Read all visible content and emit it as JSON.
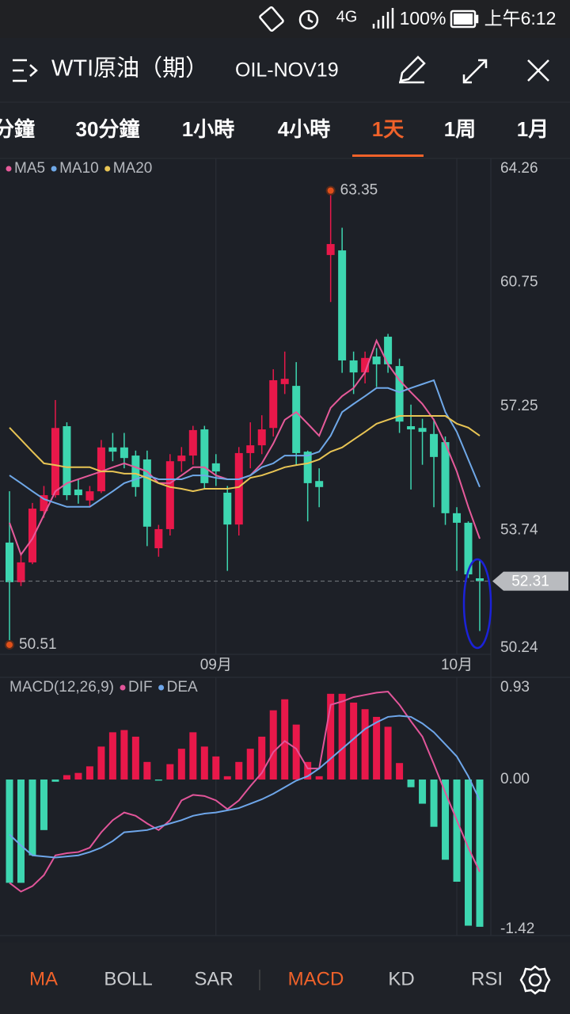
{
  "status_bar": {
    "network": "4G",
    "battery": "100%",
    "time": "上午6:12"
  },
  "header": {
    "title": "WTI原油（期）",
    "symbol": "OIL-NOV19"
  },
  "period_tabs": {
    "items": [
      "分鐘",
      "30分鐘",
      "1小時",
      "4小時",
      "1天",
      "1周",
      "1月"
    ],
    "active": 4
  },
  "indicator_tabs": {
    "items": [
      "MA",
      "BOLL",
      "SAR",
      "MACD",
      "KD",
      "RSI"
    ],
    "active": [
      0,
      3
    ]
  },
  "chart_data": [
    {
      "type": "candlestick",
      "up_color": "#e8184a",
      "down_color": "#3dd6b0",
      "categories": [
        null,
        null,
        null,
        null,
        null,
        null,
        null,
        null,
        null,
        null,
        null,
        null,
        null,
        null,
        null,
        null,
        null,
        null,
        "09月",
        null,
        null,
        null,
        null,
        null,
        null,
        null,
        null,
        null,
        null,
        null,
        null,
        null,
        null,
        null,
        null,
        null,
        null,
        null,
        null,
        "10月",
        null,
        null
      ],
      "open": [
        53.4,
        52.28,
        52.84,
        54.29,
        54.74,
        56.69,
        54.9,
        54.59,
        54.85,
        56.09,
        56.09,
        55.86,
        55.75,
        53.24,
        53.78,
        55.7,
        55.86,
        56.6,
        55.64,
        54.81,
        53.91,
        55.93,
        56.15,
        56.64,
        57.88,
        57.83,
        55.97,
        55.14,
        61.53,
        61.66,
        58.55,
        58.21,
        58.66,
        59.22,
        58.39,
        56.69,
        56.64,
        56.47,
        56.24,
        54.23,
        53.96,
        52.39
      ],
      "high": [
        54.85,
        53.06,
        54.52,
        55.0,
        57.43,
        56.8,
        55.2,
        55.0,
        56.3,
        56.5,
        56.5,
        56.0,
        56.0,
        53.9,
        55.9,
        56.1,
        56.7,
        56.7,
        55.9,
        55.0,
        56.1,
        56.8,
        57.0,
        58.3,
        58.8,
        58.5,
        56.0,
        55.5,
        63.35,
        62.3,
        58.8,
        58.8,
        58.9,
        59.3,
        58.6,
        57.3,
        56.9,
        56.9,
        56.4,
        54.4,
        54.0,
        52.9
      ],
      "low": [
        50.51,
        52.17,
        52.79,
        54.1,
        54.67,
        54.6,
        54.5,
        54.4,
        54.8,
        55.7,
        55.5,
        54.7,
        53.3,
        53.0,
        53.6,
        55.4,
        55.6,
        54.9,
        55.0,
        52.6,
        53.6,
        55.5,
        55.9,
        56.4,
        57.6,
        55.6,
        54.0,
        54.4,
        60.2,
        58.2,
        57.6,
        57.9,
        57.8,
        58.2,
        56.5,
        54.9,
        55.6,
        54.4,
        53.9,
        52.6,
        52.4,
        50.9
      ],
      "close": [
        52.28,
        52.84,
        54.36,
        54.74,
        56.64,
        54.74,
        54.74,
        54.85,
        56.09,
        55.97,
        55.79,
        54.97,
        53.85,
        53.78,
        55.7,
        55.86,
        56.58,
        55.08,
        55.41,
        53.91,
        55.93,
        56.15,
        56.6,
        57.99,
        58.03,
        55.93,
        55.08,
        54.97,
        61.84,
        58.55,
        58.21,
        58.62,
        58.44,
        58.44,
        56.82,
        56.6,
        56.53,
        55.82,
        54.23,
        53.96,
        52.5,
        52.31
      ],
      "series": [
        {
          "name": "MA5",
          "color": "#e65a9a",
          "values": [
            53.96,
            53.06,
            53.51,
            54.18,
            54.85,
            55.08,
            55.19,
            55.3,
            55.41,
            55.53,
            55.64,
            55.53,
            55.41,
            55.08,
            55.08,
            55.3,
            55.53,
            55.53,
            55.3,
            55.19,
            55.19,
            55.3,
            55.64,
            56.2,
            56.87,
            57.09,
            56.76,
            56.42,
            57.21,
            57.54,
            57.77,
            58.21,
            59.11,
            58.44,
            57.99,
            57.65,
            57.32,
            56.87,
            56.2,
            55.41,
            54.41,
            53.51
          ]
        },
        {
          "name": "MA10",
          "color": "#6fa8e8",
          "values": [
            55.3,
            55.08,
            54.85,
            54.63,
            54.52,
            54.41,
            54.41,
            54.41,
            54.63,
            54.85,
            55.08,
            55.19,
            55.3,
            55.19,
            55.19,
            55.19,
            55.3,
            55.3,
            55.23,
            55.19,
            55.19,
            55.3,
            55.53,
            55.64,
            55.86,
            55.86,
            55.86,
            55.97,
            56.42,
            57.09,
            57.32,
            57.54,
            57.77,
            57.77,
            57.65,
            57.77,
            57.88,
            57.99,
            57.09,
            56.53,
            55.75,
            54.97
          ]
        },
        {
          "name": "MA20",
          "color": "#e8c454",
          "values": [
            56.65,
            56.31,
            55.97,
            55.64,
            55.59,
            55.53,
            55.53,
            55.53,
            55.41,
            55.41,
            55.35,
            55.35,
            55.23,
            55.08,
            54.97,
            54.92,
            54.85,
            54.92,
            54.92,
            54.92,
            54.97,
            55.23,
            55.3,
            55.41,
            55.53,
            55.59,
            55.64,
            55.75,
            55.97,
            56.09,
            56.31,
            56.53,
            56.76,
            56.87,
            56.98,
            56.98,
            56.98,
            56.98,
            56.98,
            56.76,
            56.65,
            56.42
          ]
        }
      ],
      "ylim": [
        50.24,
        64.26
      ],
      "yticks": [
        64.26,
        60.75,
        57.25,
        53.74,
        50.24
      ]
    },
    {
      "type": "macd",
      "title": "MACD(12,26,9)",
      "up_color": "#e8184a",
      "down_color": "#3dd6b0",
      "values": [
        -0.94,
        -0.94,
        -0.69,
        -0.46,
        -0.02,
        0.04,
        0.06,
        0.12,
        0.3,
        0.43,
        0.45,
        0.39,
        0.16,
        -0.01,
        0.14,
        0.28,
        0.43,
        0.3,
        0.21,
        0.03,
        0.16,
        0.28,
        0.39,
        0.63,
        0.73,
        0.5,
        0.16,
        0.03,
        0.78,
        0.78,
        0.7,
        0.64,
        0.57,
        0.48,
        0.15,
        -0.07,
        -0.22,
        -0.43,
        -0.73,
        -0.93,
        -1.33,
        -1.34
      ],
      "series": [
        {
          "name": "DIF",
          "color": "#e2559a",
          "values": [
            -0.94,
            -1.02,
            -0.97,
            -0.87,
            -0.69,
            -0.67,
            -0.66,
            -0.62,
            -0.48,
            -0.37,
            -0.3,
            -0.33,
            -0.4,
            -0.46,
            -0.37,
            -0.19,
            -0.14,
            -0.15,
            -0.19,
            -0.27,
            -0.19,
            -0.06,
            0.06,
            0.25,
            0.35,
            0.28,
            0.1,
            0.1,
            0.68,
            0.71,
            0.75,
            0.77,
            0.79,
            0.8,
            0.68,
            0.53,
            0.39,
            0.14,
            -0.12,
            -0.37,
            -0.62,
            -0.84
          ]
        },
        {
          "name": "DEA",
          "color": "#6ea6ea",
          "values": [
            -0.5,
            -0.6,
            -0.69,
            -0.7,
            -0.71,
            -0.7,
            -0.69,
            -0.66,
            -0.62,
            -0.56,
            -0.48,
            -0.47,
            -0.46,
            -0.43,
            -0.4,
            -0.37,
            -0.33,
            -0.31,
            -0.3,
            -0.28,
            -0.26,
            -0.22,
            -0.18,
            -0.13,
            -0.07,
            -0.01,
            0.03,
            0.1,
            0.19,
            0.28,
            0.37,
            0.46,
            0.52,
            0.57,
            0.58,
            0.57,
            0.51,
            0.43,
            0.32,
            0.21,
            0.03,
            -0.19
          ]
        }
      ],
      "ylim": [
        -1.42,
        0.93
      ],
      "yticks": [
        0.93,
        {
          "value": 0,
          "label": "0.00"
        },
        -1.42
      ]
    }
  ]
}
